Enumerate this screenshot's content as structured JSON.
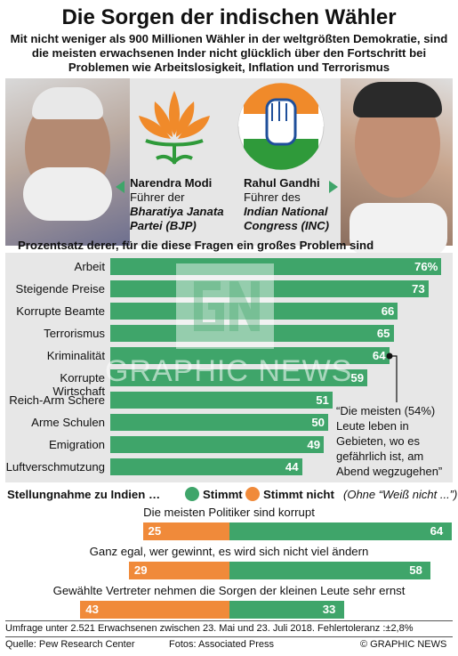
{
  "title": "Die Sorgen der indischen Wähler",
  "subtitle": "Mit nicht weniger als 900 Millionen Wähler in der weltgrößten Demokratie, sind die meisten erwachsenen Inder nicht glücklich über den Fortschritt bei Problemen wie Arbeitslosigkeit, Inflation und Terrorismus",
  "parties": {
    "left": {
      "name": "Narendra Modi",
      "role": "Führer der",
      "party_line1": "Bharatiya Janata",
      "party_line2": "Partei (BJP)"
    },
    "right": {
      "name": "Rahul Gandhi",
      "role": "Führer des",
      "party_line1": "Indian National",
      "party_line2": "Congress (INC)"
    }
  },
  "watermark": "GRAPHIC NEWS",
  "colors": {
    "green": "#3fa56a",
    "orange": "#f08a3a",
    "panel": "#e7e7e7"
  },
  "chart_data": [
    {
      "type": "bar",
      "title": "Prozentsatz derer, für die diese Fragen ein großes Problem sind",
      "categories": [
        "Arbeit",
        "Steigende Preise",
        "Korrupte Beamte",
        "Terrorismus",
        "Kriminalität",
        "Korrupte Wirtschaft",
        "Reich-Arm Schere",
        "Arme Schulen",
        "Emigration",
        "Luftverschmutzung"
      ],
      "values": [
        76,
        73,
        66,
        65,
        64,
        59,
        51,
        50,
        49,
        44
      ],
      "value_labels": [
        "76%",
        "73",
        "66",
        "65",
        "64",
        "59",
        "51",
        "50",
        "49",
        "44"
      ],
      "annotation": "“Die meisten (54%) Leute leben in Gebieten, wo es gefährlich ist, am Abend wegzugehen”"
    },
    {
      "type": "bar",
      "title": "Stellungnahme zu Indien …",
      "legend": [
        "Stimmt",
        "Stimmt nicht"
      ],
      "legend_note": "(Ohne “Weiß nicht ...”)",
      "categories": [
        "Die meisten Politiker sind korrupt",
        "Ganz egal, wer gewinnt, es wird sich nicht viel ändern",
        "Gewählte Vertreter nehmen die Sorgen der kleinen Leute sehr ernst"
      ],
      "series": [
        {
          "name": "Stimmt",
          "values": [
            64,
            58,
            33
          ]
        },
        {
          "name": "Stimmt nicht",
          "values": [
            25,
            29,
            43
          ]
        }
      ]
    }
  ],
  "footer": {
    "survey": "Umfrage unter 2.521 Erwachsenen zwischen 23. Mai und 23. Juli 2018. Fehlertoleranz :±2,8%",
    "source": "Quelle: Pew Research Center",
    "photos": "Fotos: Associated Press",
    "credit": "© GRAPHIC NEWS"
  }
}
